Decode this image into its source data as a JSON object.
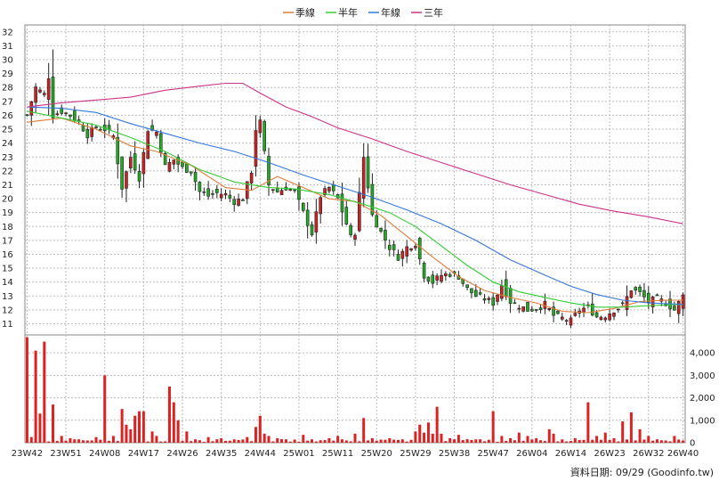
{
  "legend": [
    {
      "label": "季線",
      "color": "#e07b39"
    },
    {
      "label": "半年",
      "color": "#33cc33"
    },
    {
      "label": "年線",
      "color": "#3377dd"
    },
    {
      "label": "三年",
      "color": "#cc3388"
    }
  ],
  "footer": {
    "text": "資料日期: 09/29  (Goodinfo.tw)"
  },
  "colors": {
    "up": "#cc2222",
    "down": "#22aa22",
    "volume": "#dd2222",
    "grid": "#bbbbbb"
  },
  "chart_data": [
    {
      "type": "candlestick",
      "title": "",
      "y_ticks": [
        11,
        12,
        13,
        14,
        15,
        16,
        17,
        18,
        19,
        20,
        21,
        22,
        23,
        24,
        25,
        26,
        27,
        28,
        29,
        30,
        31,
        32
      ],
      "ylim": [
        10.2,
        32.5
      ],
      "x_tick_labels": [
        "23W42",
        "23W51",
        "24W08",
        "24W17",
        "24W26",
        "24W35",
        "24W44",
        "25W01",
        "25W11",
        "25W20",
        "25W29",
        "25W38",
        "25W47",
        "26W04",
        "26W14",
        "26W23",
        "26W32",
        "26W40"
      ],
      "x_tick_positions": [
        0,
        9,
        18,
        27,
        36,
        45,
        54,
        63,
        72,
        81,
        90,
        99,
        108,
        117,
        126,
        135,
        144,
        152
      ],
      "num_weeks": 153,
      "candle_anchors": [
        [
          0,
          26.0
        ],
        [
          2,
          28.0
        ],
        [
          4,
          27.5
        ],
        [
          5,
          28.8
        ],
        [
          6,
          26.0
        ],
        [
          8,
          26.3
        ],
        [
          10,
          26.0
        ],
        [
          12,
          25.5
        ],
        [
          14,
          24.6
        ],
        [
          16,
          25.2
        ],
        [
          18,
          25.0
        ],
        [
          20,
          24.5
        ],
        [
          22,
          20.8
        ],
        [
          24,
          23.0
        ],
        [
          26,
          21.5
        ],
        [
          28,
          25.0
        ],
        [
          30,
          24.8
        ],
        [
          32,
          22.3
        ],
        [
          34,
          22.8
        ],
        [
          36,
          22.2
        ],
        [
          38,
          22.0
        ],
        [
          40,
          20.5
        ],
        [
          42,
          20.2
        ],
        [
          44,
          20.4
        ],
        [
          46,
          20.3
        ],
        [
          48,
          19.8
        ],
        [
          50,
          20.0
        ],
        [
          52,
          22.0
        ],
        [
          53,
          25.0
        ],
        [
          54,
          25.5
        ],
        [
          56,
          21.0
        ],
        [
          58,
          20.5
        ],
        [
          60,
          20.8
        ],
        [
          62,
          20.5
        ],
        [
          64,
          19.0
        ],
        [
          66,
          17.5
        ],
        [
          68,
          20.2
        ],
        [
          70,
          20.8
        ],
        [
          72,
          20.0
        ],
        [
          74,
          18.2
        ],
        [
          75,
          17.2
        ],
        [
          76,
          17.6
        ],
        [
          78,
          23.0
        ],
        [
          80,
          18.8
        ],
        [
          82,
          17.6
        ],
        [
          84,
          16.5
        ],
        [
          86,
          15.8
        ],
        [
          88,
          16.5
        ],
        [
          90,
          16.8
        ],
        [
          92,
          14.5
        ],
        [
          94,
          14.0
        ],
        [
          96,
          14.5
        ],
        [
          98,
          14.6
        ],
        [
          100,
          14.4
        ],
        [
          102,
          13.5
        ],
        [
          104,
          13.0
        ],
        [
          106,
          12.8
        ],
        [
          108,
          12.5
        ],
        [
          110,
          13.8
        ],
        [
          112,
          12.6
        ],
        [
          114,
          12.3
        ],
        [
          116,
          12.0
        ],
        [
          118,
          12.1
        ],
        [
          120,
          12.4
        ],
        [
          122,
          11.6
        ],
        [
          124,
          11.4
        ],
        [
          126,
          11.2
        ],
        [
          128,
          12.0
        ],
        [
          130,
          12.2
        ],
        [
          132,
          11.5
        ],
        [
          134,
          11.6
        ],
        [
          136,
          12.0
        ],
        [
          138,
          12.3
        ],
        [
          140,
          13.5
        ],
        [
          142,
          13.2
        ],
        [
          144,
          12.6
        ],
        [
          146,
          12.8
        ],
        [
          148,
          12.5
        ],
        [
          150,
          12.0
        ],
        [
          152,
          13.0
        ]
      ],
      "series": [
        {
          "name": "季線",
          "color": "#e07b39",
          "points": [
            [
              0,
              25.5
            ],
            [
              8,
              25.8
            ],
            [
              16,
              25.0
            ],
            [
              24,
              23.8
            ],
            [
              30,
              23.4
            ],
            [
              38,
              22.4
            ],
            [
              46,
              20.8
            ],
            [
              52,
              20.6
            ],
            [
              58,
              21.6
            ],
            [
              64,
              20.8
            ],
            [
              70,
              20.0
            ],
            [
              76,
              19.8
            ],
            [
              82,
              18.8
            ],
            [
              88,
              17.3
            ],
            [
              94,
              15.8
            ],
            [
              100,
              14.4
            ],
            [
              106,
              13.4
            ],
            [
              112,
              12.9
            ],
            [
              118,
              12.5
            ],
            [
              124,
              11.9
            ],
            [
              130,
              11.8
            ],
            [
              136,
              12.1
            ],
            [
              142,
              12.6
            ],
            [
              148,
              12.7
            ],
            [
              152,
              12.7
            ]
          ]
        },
        {
          "name": "半年",
          "color": "#33cc33",
          "points": [
            [
              0,
              26.3
            ],
            [
              8,
              25.8
            ],
            [
              16,
              25.3
            ],
            [
              24,
              24.4
            ],
            [
              32,
              23.4
            ],
            [
              40,
              22.1
            ],
            [
              48,
              21.2
            ],
            [
              56,
              20.8
            ],
            [
              62,
              20.7
            ],
            [
              70,
              20.3
            ],
            [
              78,
              19.6
            ],
            [
              84,
              19.0
            ],
            [
              90,
              18.0
            ],
            [
              96,
              16.6
            ],
            [
              102,
              15.2
            ],
            [
              108,
              14.0
            ],
            [
              114,
              13.3
            ],
            [
              120,
              12.9
            ],
            [
              126,
              12.5
            ],
            [
              132,
              12.2
            ],
            [
              138,
              12.2
            ],
            [
              144,
              12.3
            ],
            [
              152,
              12.4
            ]
          ]
        },
        {
          "name": "年線",
          "color": "#3377dd",
          "points": [
            [
              0,
              26.6
            ],
            [
              8,
              26.5
            ],
            [
              16,
              26.2
            ],
            [
              24,
              25.4
            ],
            [
              32,
              24.7
            ],
            [
              40,
              24.0
            ],
            [
              48,
              23.4
            ],
            [
              56,
              22.6
            ],
            [
              64,
              21.7
            ],
            [
              72,
              20.9
            ],
            [
              80,
              20.1
            ],
            [
              88,
              19.2
            ],
            [
              96,
              18.2
            ],
            [
              104,
              17.0
            ],
            [
              112,
              15.6
            ],
            [
              120,
              14.5
            ],
            [
              126,
              13.7
            ],
            [
              132,
              13.1
            ],
            [
              138,
              12.7
            ],
            [
              144,
              12.5
            ],
            [
              152,
              12.4
            ]
          ]
        },
        {
          "name": "三年",
          "color": "#cc3388",
          "points": [
            [
              0,
              26.6
            ],
            [
              8,
              26.9
            ],
            [
              16,
              27.1
            ],
            [
              24,
              27.3
            ],
            [
              32,
              27.8
            ],
            [
              40,
              28.1
            ],
            [
              46,
              28.3
            ],
            [
              50,
              28.3
            ],
            [
              54,
              27.6
            ],
            [
              60,
              26.6
            ],
            [
              66,
              25.9
            ],
            [
              72,
              25.1
            ],
            [
              80,
              24.3
            ],
            [
              88,
              23.4
            ],
            [
              96,
              22.6
            ],
            [
              104,
              21.8
            ],
            [
              112,
              21.0
            ],
            [
              120,
              20.3
            ],
            [
              128,
              19.6
            ],
            [
              136,
              19.1
            ],
            [
              144,
              18.7
            ],
            [
              152,
              18.2
            ]
          ]
        }
      ]
    },
    {
      "type": "bar",
      "title": "",
      "y_ticks": [
        0,
        1000,
        2000,
        3000,
        4000
      ],
      "y_tick_labels": [
        "0",
        "1,000",
        "2,000",
        "3,000",
        "4,000"
      ],
      "ylim": [
        0,
        4800
      ],
      "spikes": [
        [
          0,
          4700
        ],
        [
          1,
          250
        ],
        [
          2,
          4100
        ],
        [
          3,
          1300
        ],
        [
          4,
          4500
        ],
        [
          6,
          1700
        ],
        [
          8,
          300
        ],
        [
          10,
          200
        ],
        [
          12,
          150
        ],
        [
          14,
          100
        ],
        [
          16,
          250
        ],
        [
          18,
          3000
        ],
        [
          20,
          300
        ],
        [
          22,
          1500
        ],
        [
          23,
          800
        ],
        [
          24,
          600
        ],
        [
          25,
          1200
        ],
        [
          26,
          1400
        ],
        [
          27,
          1400
        ],
        [
          29,
          500
        ],
        [
          30,
          300
        ],
        [
          33,
          2500
        ],
        [
          34,
          1800
        ],
        [
          35,
          1000
        ],
        [
          37,
          500
        ],
        [
          39,
          150
        ],
        [
          42,
          250
        ],
        [
          45,
          200
        ],
        [
          48,
          150
        ],
        [
          51,
          250
        ],
        [
          53,
          700
        ],
        [
          54,
          1200
        ],
        [
          55,
          400
        ],
        [
          56,
          300
        ],
        [
          58,
          200
        ],
        [
          60,
          150
        ],
        [
          64,
          350
        ],
        [
          66,
          150
        ],
        [
          70,
          200
        ],
        [
          72,
          300
        ],
        [
          74,
          100
        ],
        [
          76,
          400
        ],
        [
          78,
          1100
        ],
        [
          80,
          200
        ],
        [
          84,
          200
        ],
        [
          87,
          150
        ],
        [
          90,
          500
        ],
        [
          91,
          800
        ],
        [
          92,
          450
        ],
        [
          93,
          900
        ],
        [
          94,
          400
        ],
        [
          95,
          1600
        ],
        [
          96,
          400
        ],
        [
          98,
          200
        ],
        [
          100,
          350
        ],
        [
          104,
          150
        ],
        [
          108,
          1400
        ],
        [
          110,
          300
        ],
        [
          112,
          200
        ],
        [
          114,
          450
        ],
        [
          116,
          300
        ],
        [
          118,
          200
        ],
        [
          121,
          600
        ],
        [
          122,
          400
        ],
        [
          124,
          150
        ],
        [
          127,
          200
        ],
        [
          130,
          1800
        ],
        [
          132,
          300
        ],
        [
          134,
          450
        ],
        [
          136,
          200
        ],
        [
          138,
          950
        ],
        [
          140,
          1350
        ],
        [
          142,
          600
        ],
        [
          144,
          300
        ],
        [
          146,
          150
        ],
        [
          148,
          100
        ],
        [
          150,
          300
        ],
        [
          152,
          100
        ]
      ]
    }
  ]
}
